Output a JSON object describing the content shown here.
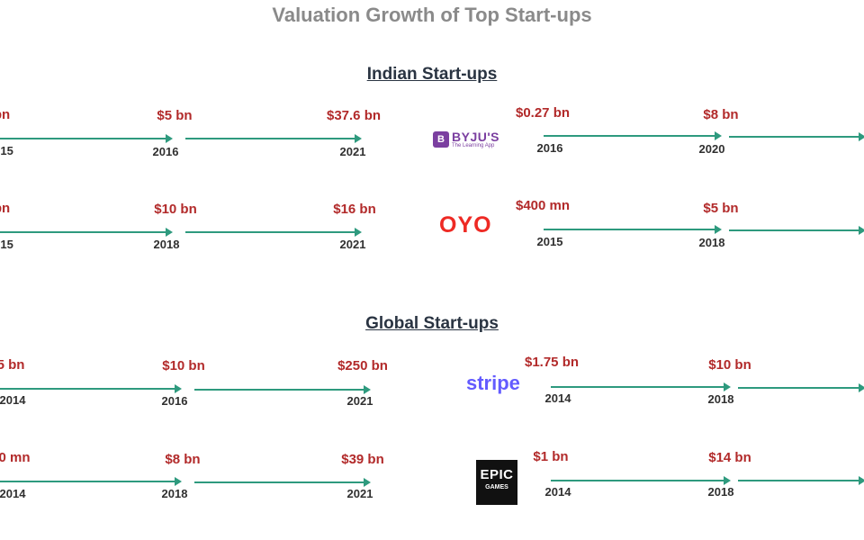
{
  "title": "Valuation Growth of Top Start-ups",
  "sections": {
    "indian": "Indian Start-ups",
    "global": "Global Start-ups"
  },
  "rows": [
    {
      "left": {
        "v1": "bn",
        "y1": "015",
        "v2": "$5 bn",
        "y2": "2016",
        "v3": "$37.6 bn",
        "y3": "2021"
      },
      "logo": "BYJU'S",
      "logo_sub": "The Learning App",
      "right": {
        "v1": "$0.27 bn",
        "y1": "2016",
        "v2": "$8 bn",
        "y2": "2020"
      }
    },
    {
      "left": {
        "v1": "bn",
        "y1": "015",
        "v2": "$10 bn",
        "y2": "2018",
        "v3": "$16 bn",
        "y3": "2021"
      },
      "logo": "OYO",
      "right": {
        "v1": "$400 mn",
        "y1": "2015",
        "v2": "$5 bn",
        "y2": "2018"
      }
    },
    {
      "left": {
        "v1": "5 bn",
        "y1": "2014",
        "v2": "$10 bn",
        "y2": "2016",
        "v3": "$250 bn",
        "y3": "2021"
      },
      "logo": "stripe",
      "right": {
        "v1": "$1.75 bn",
        "y1": "2014",
        "v2": "$10 bn",
        "y2": "2018"
      }
    },
    {
      "left": {
        "v1": "0 mn",
        "y1": "2014",
        "v2": "$8 bn",
        "y2": "2018",
        "v3": "$39 bn",
        "y3": "2021"
      },
      "logo": "EPIC",
      "logo_sub": "GAMES",
      "right": {
        "v1": "$1 bn",
        "y1": "2014",
        "v2": "$14 bn",
        "y2": "2018"
      }
    }
  ],
  "colors": {
    "value": "#b22a2a",
    "arrow": "#2e9a7e",
    "year": "#303030"
  },
  "icons": [
    "byjus-logo-icon",
    "oyo-logo-icon",
    "stripe-logo-icon",
    "epic-games-logo-icon"
  ]
}
